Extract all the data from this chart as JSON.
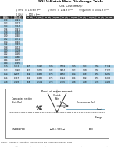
{
  "title": "90° V-Notch Weir Discharge Table",
  "subtitle": "(U.S. Customary)",
  "formula_line1": "Q (ft³/s)  =  1.379 × H²ʷ⁵          Q (m³/s)  =  1.34 × H²ʷ⁵          Q (gal/min)  =  0.001 × H²ʷ⁵",
  "formula_line2": "Q (L/s)     =  100 × H²ʷ⁵",
  "col_headers_short": [
    "H (ft)",
    "Q (cfs)"
  ],
  "col_headers_full": [
    "H (ft)",
    "Q (cfs)",
    "H (ft)",
    "Q (cfs)",
    "H (ft)",
    "Q (cfs)",
    "H (ft)",
    "Q (cfs)",
    "H (ft)",
    "Q (cfs)"
  ],
  "rows_short": [
    [
      "0.20",
      "0.021"
    ],
    [
      "0.22",
      "0.027"
    ],
    [
      "0.24",
      "0.034"
    ],
    [
      "0.26",
      "0.041"
    ],
    [
      "0.28",
      "0.050"
    ],
    [
      "0.30",
      "0.060"
    ],
    [
      "0.32",
      "0.071"
    ],
    [
      "0.34",
      "0.083"
    ],
    [
      "0.36",
      "0.097"
    ],
    [
      "0.38",
      "0.112"
    ],
    [
      "0.40",
      "0.128"
    ],
    [
      "0.42",
      "0.146"
    ],
    [
      "0.44",
      "0.166"
    ],
    [
      "0.46",
      "0.187"
    ],
    [
      "0.48",
      "0.209"
    ]
  ],
  "rows_full": [
    [
      "0.50",
      "0.234",
      "0.60",
      "0.381",
      "0.70",
      "0.578",
      "0.80",
      "0.832",
      "0.90",
      "1.148"
    ],
    [
      "0.52",
      "0.260",
      "0.62",
      "0.416",
      "0.72",
      "0.624",
      "0.82",
      "0.893",
      "0.92",
      "1.220"
    ],
    [
      "0.54",
      "0.287",
      "0.64",
      "0.453",
      "0.74",
      "0.672",
      "0.84",
      "0.957",
      "0.94",
      "1.295"
    ],
    [
      "0.56",
      "0.317",
      "0.66",
      "0.493",
      "0.76",
      "0.722",
      "0.86",
      "1.023",
      "0.96",
      "1.373"
    ],
    [
      "0.58",
      "0.348",
      "0.68",
      "0.534",
      "0.78",
      "0.776",
      "0.88",
      "1.084",
      "0.98",
      "1.453"
    ]
  ],
  "row_color_even": "#9ecae1",
  "row_color_odd": "#deebf7",
  "header_color": "#2c2c2c",
  "header_text_color": "#ffffff",
  "bg_color": "#ffffff",
  "footnote_line1": "Source:    Palmer, C., Subcritical Overflow Dams and Submerged Threshold Flows",
  "footnote_line2": "           Copyright © 2013 2014 - Standard Flow Method for Open Channel Flow Measurement in Flumes and Two Flow Meter"
}
